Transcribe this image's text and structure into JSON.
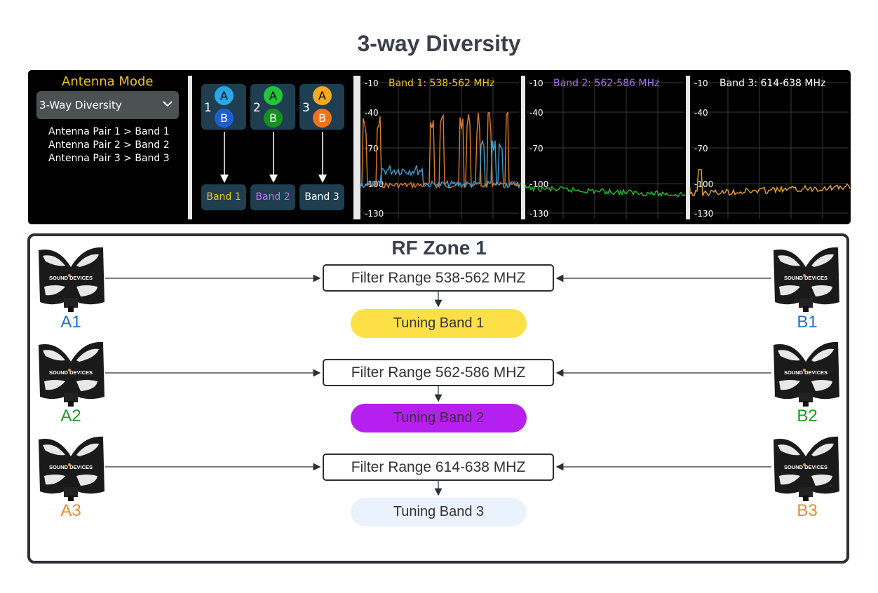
{
  "title": "3-way Diversity",
  "panel": {
    "mode_title": "Antenna Mode",
    "dropdown_value": "3-Way Diversity",
    "pairs": [
      "Antenna Pair 1 > Band 1",
      "Antenna Pair 2 > Band 2",
      "Antenna Pair 3 > Band 3"
    ],
    "antenna_groups": [
      {
        "number": "1",
        "a": "A",
        "b": "B",
        "a_color": "#2ba6e8",
        "b_color": "#1f5fd6",
        "band": "Band 1",
        "band_color": "#f2c51e"
      },
      {
        "number": "2",
        "a": "A",
        "b": "B",
        "a_color": "#22c53a",
        "b_color": "#16901f",
        "band": "Band 2",
        "band_color": "#c56ef0"
      },
      {
        "number": "3",
        "a": "A",
        "b": "B",
        "a_color": "#f4a91f",
        "b_color": "#ef7418",
        "band": "Band 3",
        "band_color": "#ffffff"
      }
    ],
    "spectra": [
      {
        "title": "Band 1: 538-562 MHz",
        "title_color": "#f2c51e",
        "trace_colors": [
          "#e07b2a",
          "#3aa0d8"
        ]
      },
      {
        "title": "Band 2: 562-586 MHz",
        "title_color": "#a770f0",
        "trace_colors": [
          "#1fbf2a"
        ]
      },
      {
        "title": "Band 3: 614-638 MHz",
        "title_color": "#ffffff",
        "trace_colors": [
          "#e8a630"
        ]
      }
    ],
    "y_ticks": [
      "-10",
      "-40",
      "-70",
      "-100",
      "-130"
    ]
  },
  "zone": {
    "title": "RF Zone 1",
    "rows": [
      {
        "left": "A1",
        "right": "B1",
        "label_color": "#1f6fd1",
        "filter": "Filter Range 538-562 MHZ",
        "band": "Tuning Band 1",
        "band_color": "#fde047"
      },
      {
        "left": "A2",
        "right": "B2",
        "label_color": "#1a9a2a",
        "filter": "Filter Range 562-586 MHZ",
        "band": "Tuning Band 2",
        "band_color": "#b51ff0"
      },
      {
        "left": "A3",
        "right": "B3",
        "label_color": "#f08a2a",
        "filter": "Filter Range 614-638 MHZ",
        "band": "Tuning Band 3",
        "band_color": "#eaf3fd"
      }
    ],
    "antenna_brand": "SOUND DEVICES"
  }
}
